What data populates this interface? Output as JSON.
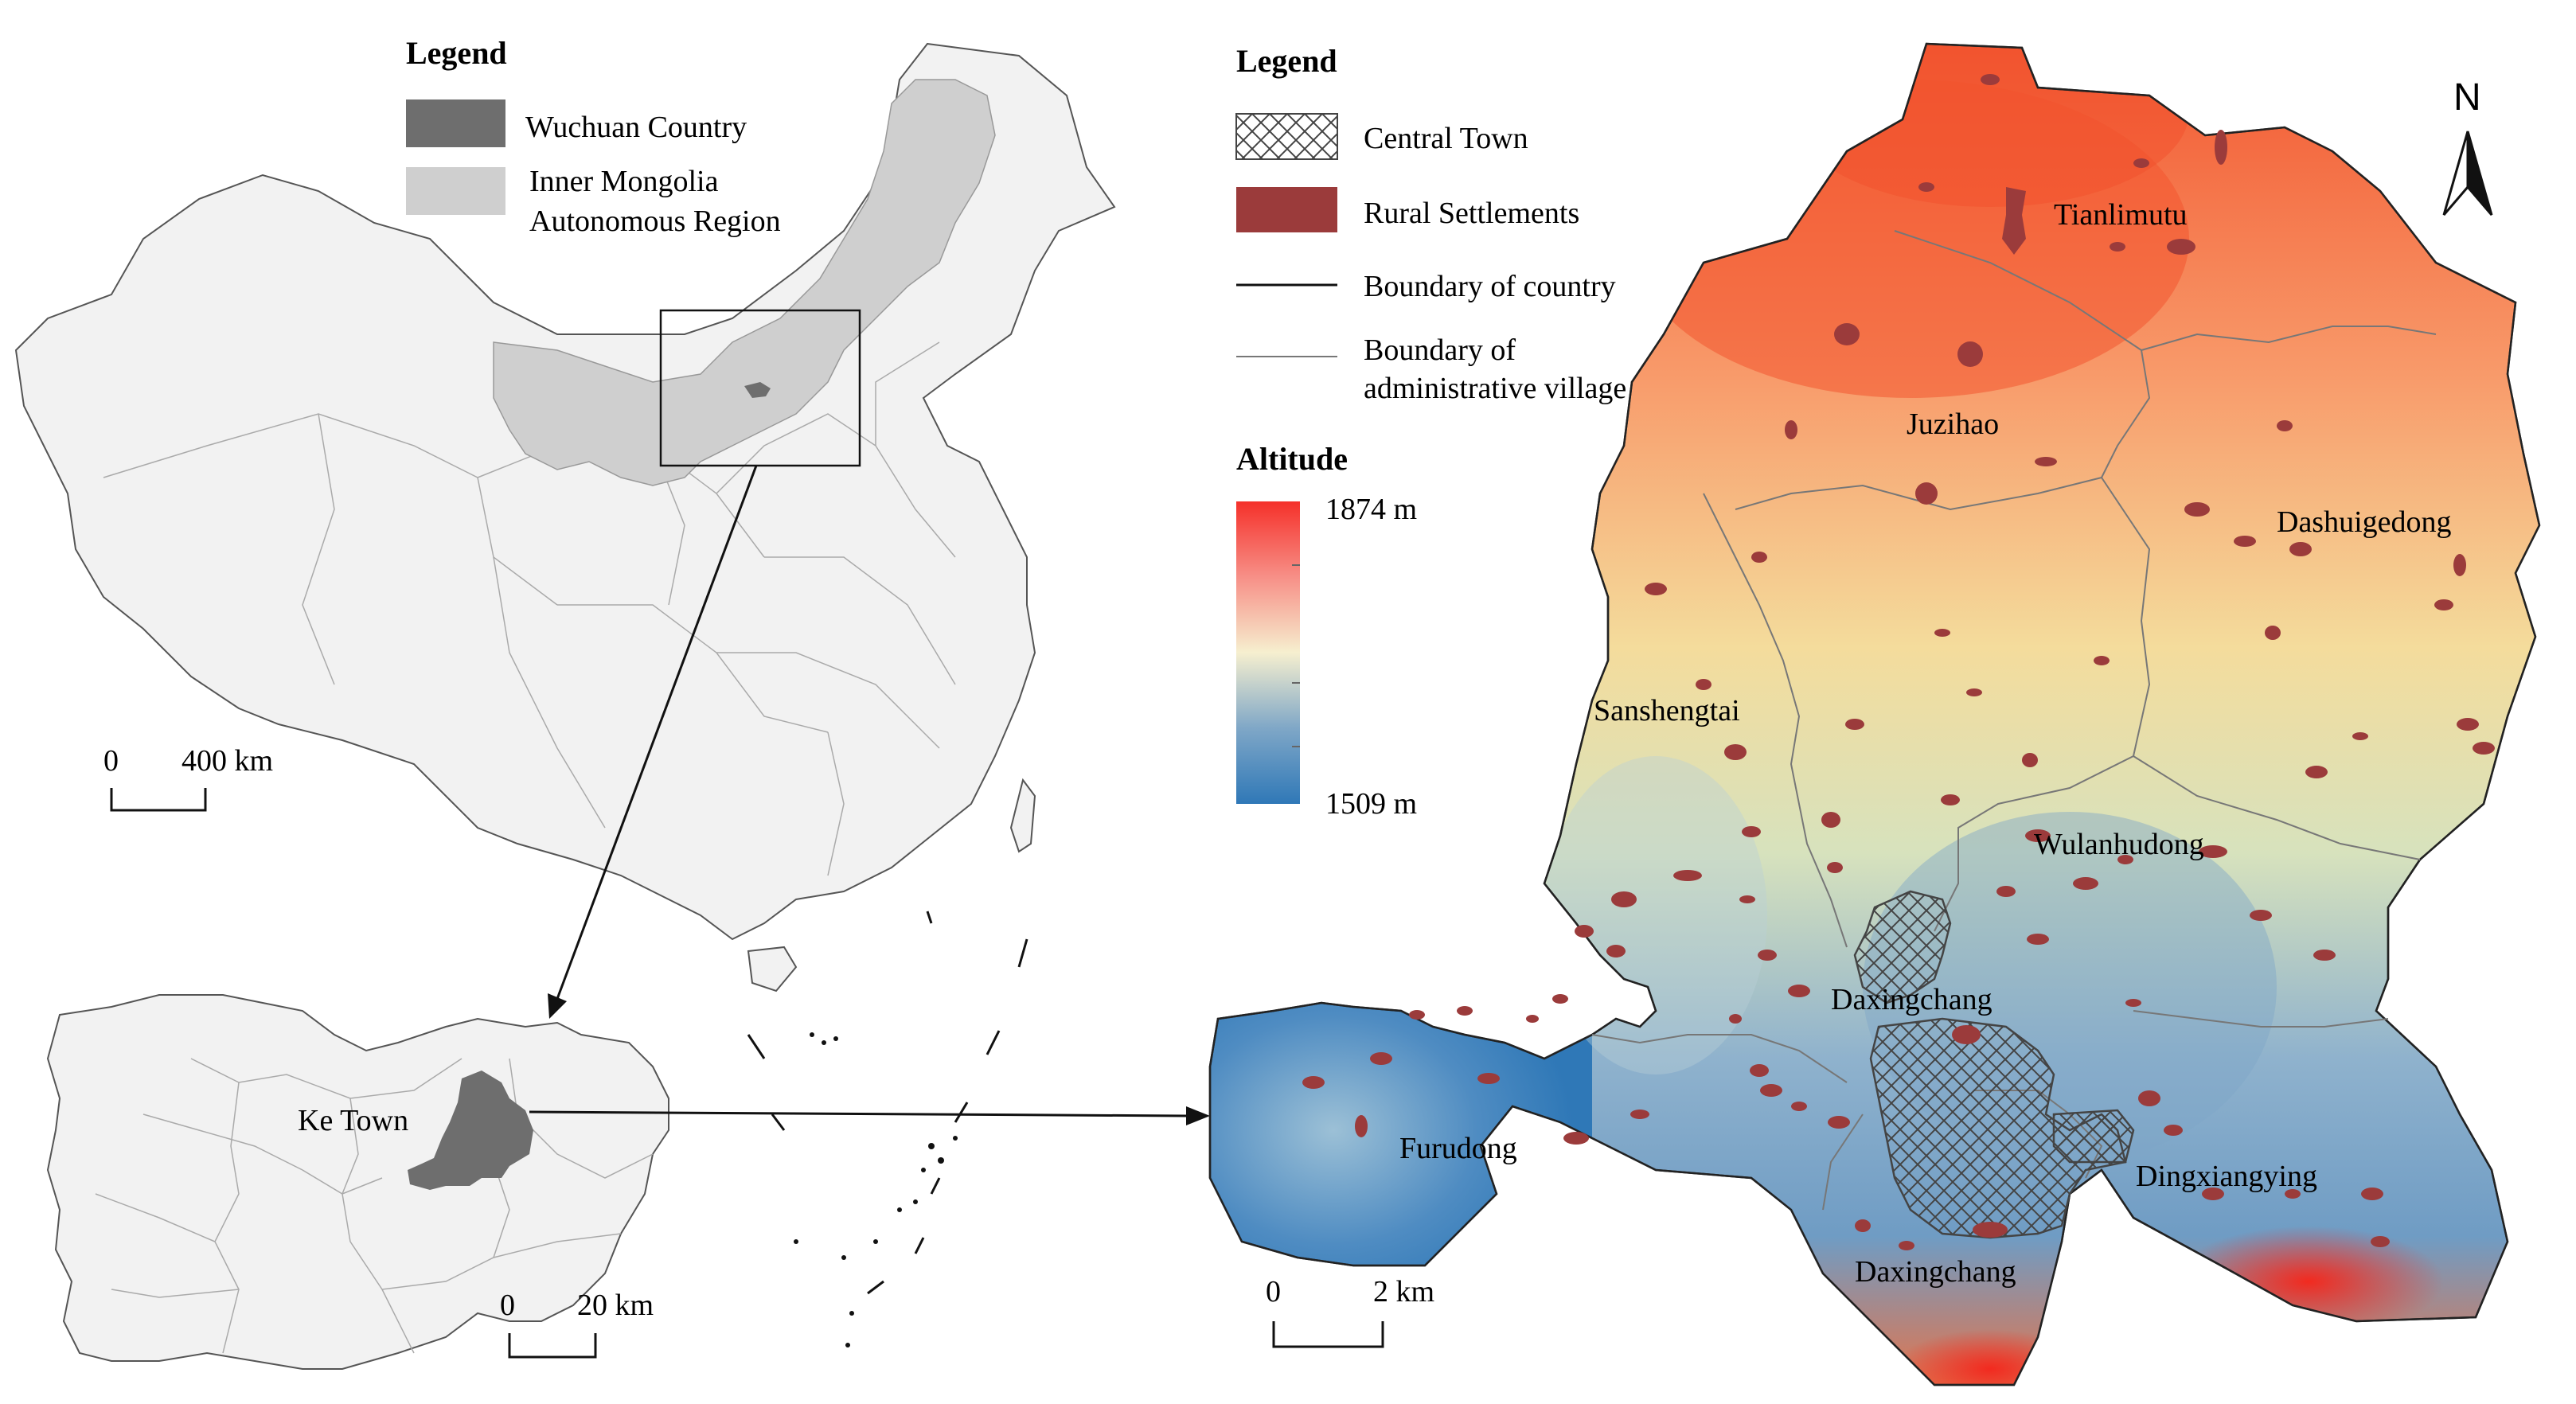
{
  "china_legend": {
    "title": "Legend",
    "item_wuchuan": "Wuchuan Country",
    "item_inner_mongolia_line1": "Inner Mongolia",
    "item_inner_mongolia_line2": "Autonomous Region",
    "swatch_wuchuan_color": "#6e6e6e",
    "swatch_inner_mongolia_color": "#cfcfcf"
  },
  "china_scale": {
    "zero": "0",
    "max": "400 km"
  },
  "county_map": {
    "town_label": "Ke Town"
  },
  "county_scale": {
    "zero": "0",
    "max": "20 km"
  },
  "main_legend": {
    "title": "Legend",
    "central_town": "Central Town",
    "rural_settlements": "Rural Settlements",
    "country_boundary": "Boundary of country",
    "village_boundary_line1": "Boundary of",
    "village_boundary_line2": "administrative village",
    "rural_color": "#9b3b3b"
  },
  "altitude": {
    "title": "Altitude",
    "max_label": "1874 m",
    "min_label": "1509 m",
    "colors": [
      "#f5302a",
      "#f78f87",
      "#f6efcf",
      "#7fa7c7",
      "#2f78b7"
    ]
  },
  "villages": {
    "tianlimutu": "Tianlimutu",
    "juzihao": "Juzihao",
    "dashuigedong": "Dashuigedong",
    "sanshengtai": "Sanshengtai",
    "wulanhudong": "Wulanhudong",
    "daxingchang_north": "Daxingchang",
    "furudong": "Furudong",
    "dingxiangying": "Dingxiangying",
    "daxingchang_south": "Daxingchang"
  },
  "main_scale": {
    "zero": "0",
    "max": "2 km"
  },
  "north_arrow": {
    "label": "N"
  }
}
